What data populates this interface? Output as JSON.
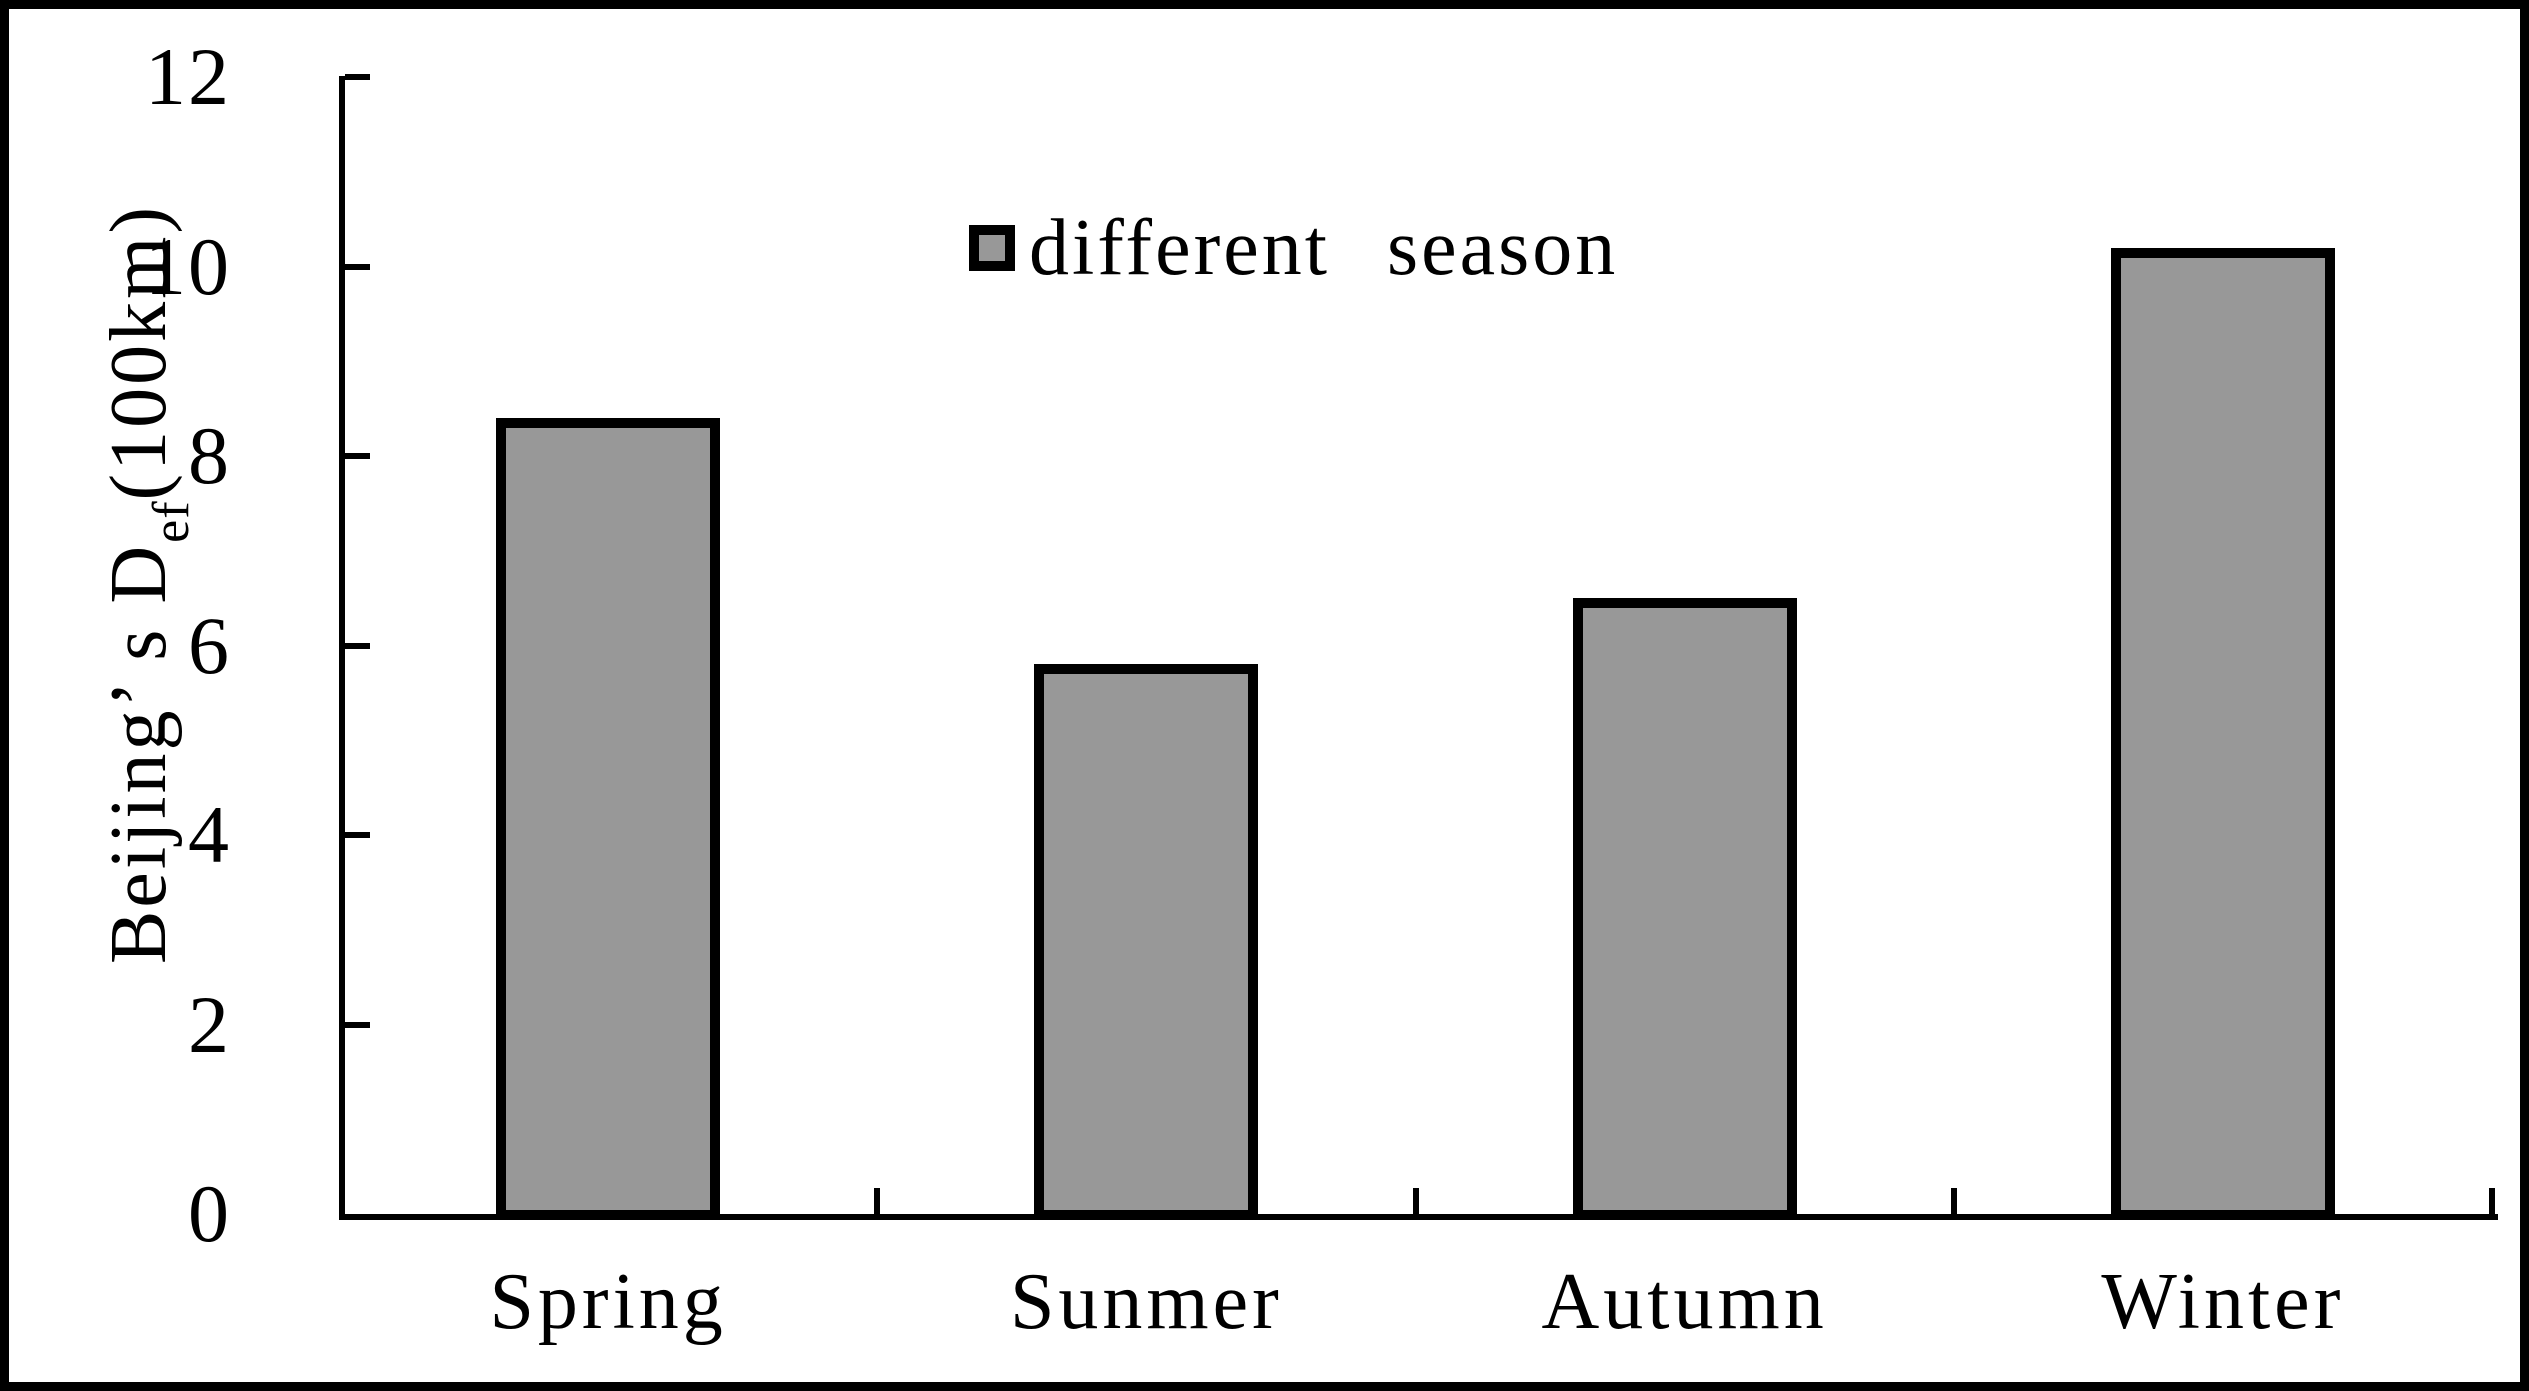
{
  "figure": {
    "background": "#ffffff",
    "frame_color": "#000000"
  },
  "chart_data": {
    "type": "bar",
    "title": "",
    "categories": [
      "Spring",
      "Sunmer",
      "Autumn",
      "Winter"
    ],
    "values": [
      8.4,
      5.8,
      6.5,
      10.2
    ],
    "xlabel": "",
    "ylabel": "Beijing’ s Def(100km)",
    "ylabel_parts": {
      "prefix": "Beijing’ s D",
      "subscript": "ef",
      "suffix": "(100km)"
    },
    "ylim": [
      0,
      12
    ],
    "yticks": [
      0,
      2,
      4,
      6,
      8,
      10,
      12
    ],
    "grid": false,
    "legend": {
      "label": "different season",
      "position": "top-center"
    },
    "colors": {
      "bar_fill": "#989898",
      "bar_border": "#000000",
      "axis": "#000000",
      "text": "#000000"
    }
  }
}
